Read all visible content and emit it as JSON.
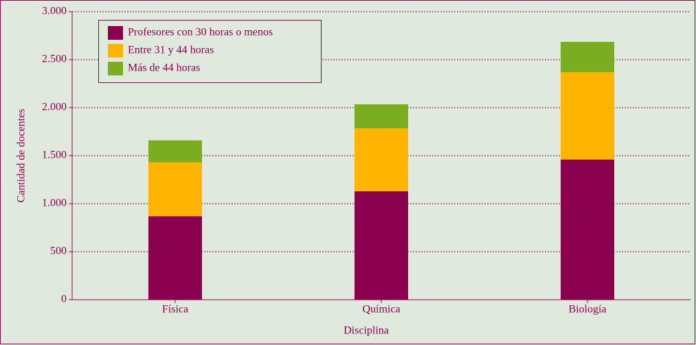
{
  "chart_data": {
    "type": "stacked_bar",
    "x_label": "Disciplina",
    "y_label": "Cantidad de docentes",
    "categories": [
      "Física",
      "Química",
      "Biología"
    ],
    "series": [
      {
        "name": "Profesores con 30 horas o menos",
        "color": "#8c0050",
        "values": [
          870,
          1130,
          1460
        ]
      },
      {
        "name": "Entre 31 y 44 horas",
        "color": "#ffb400",
        "values": [
          560,
          655,
          910
        ]
      },
      {
        "name": "Más de 44 horas",
        "color": "#7aad20",
        "values": [
          230,
          250,
          315
        ]
      }
    ],
    "ylim": [
      0,
      3000
    ],
    "yticks": [
      0,
      500,
      {
        "value": 1000,
        "label": "1.000"
      },
      {
        "value": 1500,
        "label": "1.500"
      },
      {
        "value": 2000,
        "label": "2.000"
      },
      {
        "value": 2500,
        "label": "2.500"
      },
      {
        "value": 3000,
        "label": "3.000"
      }
    ],
    "grid": true,
    "legend": "upper left"
  }
}
